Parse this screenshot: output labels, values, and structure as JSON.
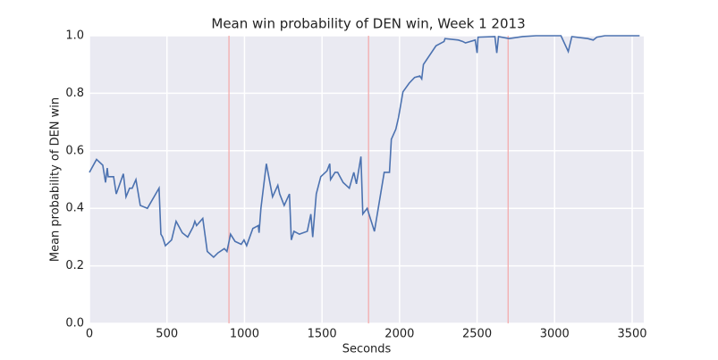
{
  "chart_data": {
    "type": "line",
    "title": "Mean win probability of DEN win, Week 1 2013",
    "xlabel": "Seconds",
    "ylabel": "Mean probability of DEN win",
    "x": [
      0,
      46,
      86,
      104,
      115,
      121,
      156,
      173,
      219,
      236,
      259,
      276,
      300,
      328,
      374,
      449,
      461,
      472,
      490,
      530,
      559,
      599,
      634,
      668,
      680,
      691,
      731,
      760,
      801,
      829,
      870,
      887,
      910,
      939,
      979,
      997,
      1014,
      1054,
      1089,
      1094,
      1106,
      1141,
      1181,
      1215,
      1227,
      1256,
      1290,
      1302,
      1319,
      1354,
      1405,
      1428,
      1440,
      1463,
      1492,
      1532,
      1550,
      1555,
      1584,
      1601,
      1636,
      1676,
      1705,
      1722,
      1751,
      1763,
      1791,
      1838,
      1901,
      1935,
      1947,
      1976,
      1993,
      2022,
      2062,
      2097,
      2131,
      2143,
      2154,
      2235,
      2252,
      2287,
      2293,
      2379,
      2408,
      2425,
      2488,
      2500,
      2506,
      2615,
      2627,
      2638,
      2707,
      2794,
      2880,
      3041,
      3088,
      3111,
      3214,
      3249,
      3272,
      3324,
      3548
    ],
    "series": [
      {
        "name": "Mean probability of DEN win",
        "color": "#4c72b0",
        "values": [
          0.525,
          0.57,
          0.55,
          0.49,
          0.54,
          0.51,
          0.51,
          0.45,
          0.52,
          0.44,
          0.47,
          0.47,
          0.5,
          0.41,
          0.4,
          0.47,
          0.31,
          0.3,
          0.27,
          0.29,
          0.355,
          0.315,
          0.3,
          0.335,
          0.355,
          0.34,
          0.365,
          0.25,
          0.23,
          0.245,
          0.26,
          0.25,
          0.31,
          0.285,
          0.275,
          0.29,
          0.27,
          0.33,
          0.34,
          0.315,
          0.4,
          0.555,
          0.44,
          0.48,
          0.45,
          0.41,
          0.45,
          0.29,
          0.32,
          0.31,
          0.32,
          0.38,
          0.3,
          0.45,
          0.51,
          0.53,
          0.555,
          0.5,
          0.525,
          0.525,
          0.49,
          0.47,
          0.525,
          0.485,
          0.58,
          0.38,
          0.4,
          0.32,
          0.525,
          0.525,
          0.64,
          0.675,
          0.715,
          0.805,
          0.835,
          0.855,
          0.86,
          0.85,
          0.9,
          0.965,
          0.97,
          0.98,
          0.99,
          0.985,
          0.98,
          0.975,
          0.985,
          0.94,
          0.995,
          0.997,
          0.94,
          0.997,
          0.99,
          0.997,
          1.0,
          1.0,
          0.945,
          0.997,
          0.99,
          0.985,
          0.995,
          1.0,
          1.0
        ]
      }
    ],
    "vlines": [
      900,
      1800,
      2700
    ],
    "vline_color": "#f4a6a6",
    "xlim": [
      0,
      3575
    ],
    "ylim": [
      0,
      1
    ],
    "xticks": [
      0,
      500,
      1000,
      1500,
      2000,
      2500,
      3000,
      3500
    ],
    "yticks": [
      {
        "value": 0,
        "label": "0.0"
      },
      {
        "value": 0.2,
        "label": "0.2"
      },
      {
        "value": 0.4,
        "label": "0.4"
      },
      {
        "value": 0.6,
        "label": "0.6"
      },
      {
        "value": 0.8,
        "label": "0.8"
      },
      {
        "value": 1,
        "label": "1.0"
      }
    ],
    "grid": true
  }
}
